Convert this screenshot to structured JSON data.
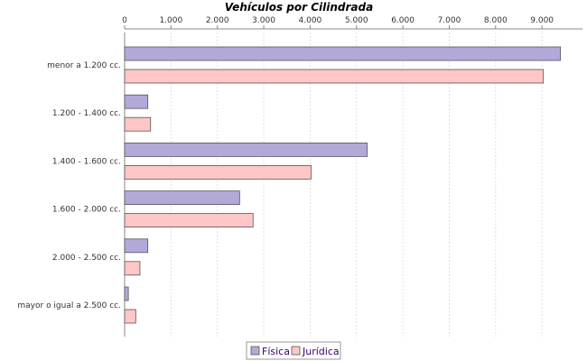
{
  "chart_data": {
    "type": "bar",
    "orientation": "horizontal",
    "title": "Vehículos por Cilindrada",
    "xlabel": "",
    "ylabel": "",
    "categories": [
      "menor a 1.200 cc.",
      "1.200 - 1.400 cc.",
      "1.400 - 1.600 cc.",
      "1.600 - 2.000 cc.",
      "2.000 - 2.500 cc.",
      "mayor o igual a 2.500 cc."
    ],
    "series": [
      {
        "name": "Física",
        "values": [
          9400,
          500,
          5230,
          2480,
          500,
          80
        ],
        "color": "#b3a9d9"
      },
      {
        "name": "Jurídica",
        "values": [
          9030,
          560,
          4020,
          2770,
          330,
          240
        ],
        "color": "#ffc6c6"
      }
    ],
    "xlim": [
      0,
      9900
    ],
    "xticks": [
      0,
      1000,
      2000,
      3000,
      4000,
      5000,
      6000,
      7000,
      8000,
      9000
    ],
    "xtick_labels": [
      "0",
      "1.000",
      "2.000",
      "3.000",
      "4.000",
      "5.000",
      "6.000",
      "7.000",
      "8.000",
      "9.000"
    ],
    "axis_position": "top",
    "grid": true,
    "legend_position": "bottom-center"
  }
}
